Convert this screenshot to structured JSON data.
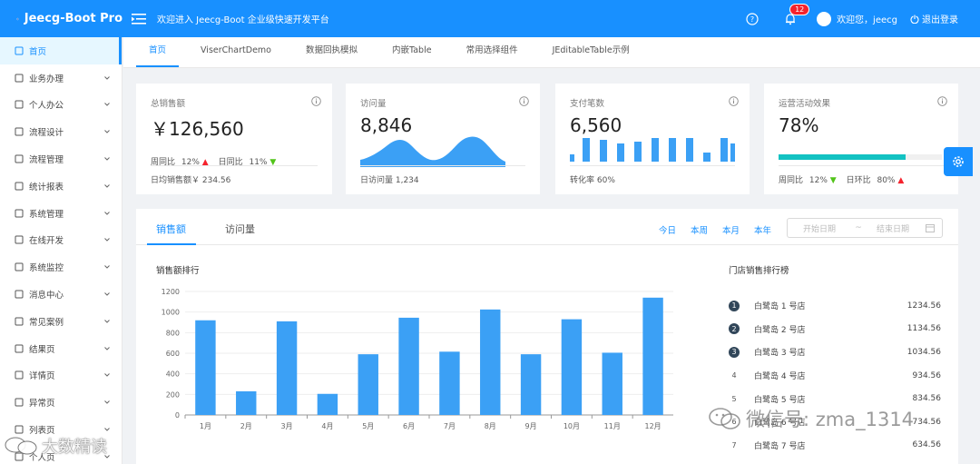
{
  "app": {
    "name": "Jeecg-Boot Pro",
    "welcome": "欢迎进入 Jeecg-Boot 企业级快速开发平台",
    "notification_count": "12",
    "user_greeting": "欢迎您，jeecg",
    "logout": "退出登录",
    "accent": "#1890ff"
  },
  "sidebar": {
    "items": [
      {
        "label": "首页",
        "icon": "home-icon"
      },
      {
        "label": "业务办理",
        "icon": "grid-icon"
      },
      {
        "label": "个人办公",
        "icon": "share-icon"
      },
      {
        "label": "流程设计",
        "icon": "grid-icon"
      },
      {
        "label": "流程管理",
        "icon": "grid-icon"
      },
      {
        "label": "统计报表",
        "icon": "bar-chart-icon"
      },
      {
        "label": "系统管理",
        "icon": "gear-icon"
      },
      {
        "label": "在线开发",
        "icon": "cloud-icon"
      },
      {
        "label": "系统监控",
        "icon": "dashboard-icon"
      },
      {
        "label": "消息中心",
        "icon": "message-icon"
      },
      {
        "label": "常见案例",
        "icon": "grid-icon"
      },
      {
        "label": "结果页",
        "icon": "check-circle-icon"
      },
      {
        "label": "详情页",
        "icon": "profile-icon"
      },
      {
        "label": "异常页",
        "icon": "warning-icon"
      },
      {
        "label": "列表页",
        "icon": "table-icon"
      },
      {
        "label": "个人页",
        "icon": "user-icon"
      }
    ]
  },
  "tabs": [
    "首页",
    "ViserChartDemo",
    "数据回执模拟",
    "内嵌Table",
    "常用选择组件",
    "JEditableTable示例"
  ],
  "cards": {
    "sales": {
      "title": "总销售额",
      "value": "￥126,560",
      "week_label": "周同比",
      "week_value": "12%",
      "day_label": "日同比",
      "day_value": "11%",
      "footer": "日均销售额￥ 234.56"
    },
    "visits": {
      "title": "访问量",
      "value": "8,846",
      "footer": "日访问量 1,234"
    },
    "payments": {
      "title": "支付笔数",
      "value": "6,560",
      "footer": "转化率 60%"
    },
    "campaign": {
      "title": "运营活动效果",
      "value": "78%",
      "progress": 78,
      "week_label": "周同比",
      "week_value": "12%",
      "day_label": "日环比",
      "day_value": "80%"
    }
  },
  "panel": {
    "tabs": [
      "销售额",
      "访问量"
    ],
    "ranges": [
      "今日",
      "本周",
      "本月",
      "本年"
    ],
    "date_start": "开始日期",
    "date_sep": "~",
    "date_end": "结束日期",
    "chart_title": "销售额排行",
    "rank_title": "门店销售排行榜",
    "ranking": [
      {
        "rank": "1",
        "name": "白鹭岛 1 号店",
        "value": "1234.56"
      },
      {
        "rank": "2",
        "name": "白鹭岛 2 号店",
        "value": "1134.56"
      },
      {
        "rank": "3",
        "name": "白鹭岛 3 号店",
        "value": "1034.56"
      },
      {
        "rank": "4",
        "name": "白鹭岛 4 号店",
        "value": "934.56"
      },
      {
        "rank": "5",
        "name": "白鹭岛 5 号店",
        "value": "834.56"
      },
      {
        "rank": "6",
        "name": "白鹭岛 6 号店",
        "value": "734.56"
      },
      {
        "rank": "7",
        "name": "白鹭岛 7 号店",
        "value": "634.56"
      }
    ]
  },
  "chart_data": {
    "type": "bar",
    "categories": [
      "1月",
      "2月",
      "3月",
      "4月",
      "5月",
      "6月",
      "7月",
      "8月",
      "9月",
      "10月",
      "11月",
      "12月"
    ],
    "values": [
      920,
      230,
      910,
      205,
      590,
      945,
      615,
      1025,
      590,
      930,
      605,
      1140
    ],
    "ylim": [
      0,
      1200
    ],
    "yticks": [
      0,
      200,
      400,
      600,
      800,
      1000,
      1200
    ],
    "color": "#3ba0f5",
    "grid": true
  },
  "watermarks": {
    "wechat": "微信号: zma_1314",
    "bigdata": "大数精读"
  }
}
